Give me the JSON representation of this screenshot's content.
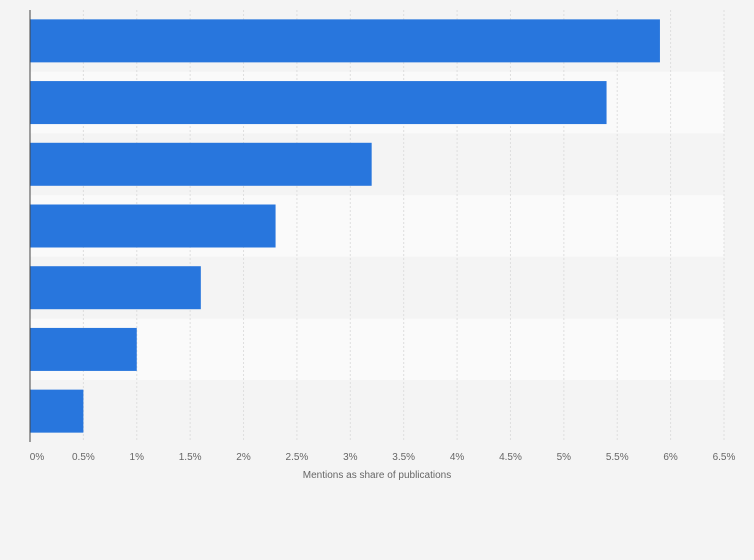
{
  "chart_data": {
    "type": "bar",
    "orientation": "horizontal",
    "title": "",
    "xlabel": "Mentions as share of publications",
    "ylabel": "",
    "categories": [
      "",
      "",
      "",
      "",
      "",
      "",
      ""
    ],
    "values": [
      5.9,
      5.4,
      3.2,
      2.3,
      1.6,
      1.0,
      0.5
    ],
    "xlim": [
      0,
      6.5
    ],
    "ticks": [
      0,
      0.5,
      1,
      1.5,
      2,
      2.5,
      3,
      3.5,
      4,
      4.5,
      5,
      5.5,
      6,
      6.5
    ],
    "tick_labels": [
      "0%",
      "0.5%",
      "1%",
      "1.5%",
      "2%",
      "2.5%",
      "3%",
      "3.5%",
      "4%",
      "4.5%",
      "5%",
      "5.5%",
      "6%",
      "6.5%"
    ],
    "grid": true,
    "legend": "none"
  },
  "colors": {
    "bar": "#2876dd",
    "background": "#f4f4f4",
    "band_light": "#fafafa",
    "band_dark": "#f4f4f4",
    "grid": "#dedede",
    "axis": "#444444",
    "text": "#666666"
  }
}
